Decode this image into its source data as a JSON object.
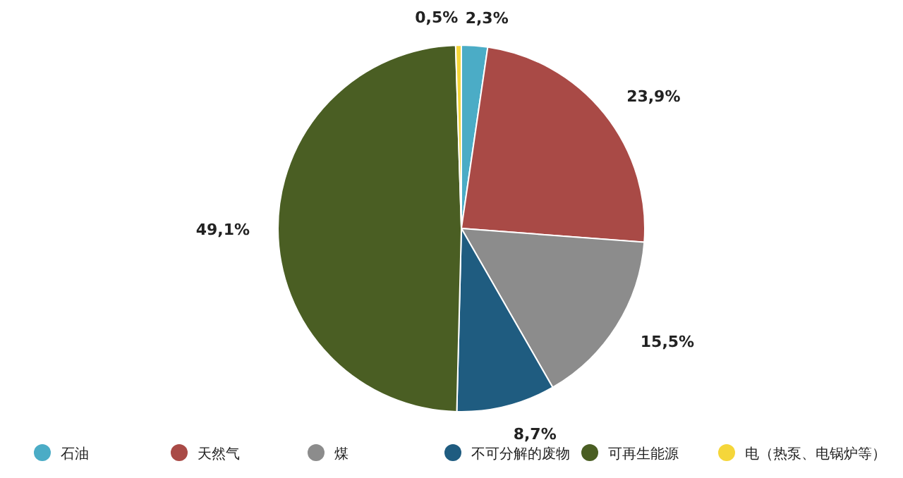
{
  "chart_data": {
    "type": "pie",
    "categories": [
      "石油",
      "天然气",
      "煤",
      "不可分解的废物",
      "可再生能源",
      "电（热泵、电锅炉等）"
    ],
    "values": [
      2.3,
      23.9,
      15.5,
      8.7,
      49.1,
      0.5
    ],
    "colors": [
      "#4bacc6",
      "#a94a46",
      "#8c8c8c",
      "#1f5c80",
      "#4a5e23",
      "#f5d63a"
    ],
    "value_labels": [
      "2,3%",
      "23,9%",
      "15,5%",
      "8,7%",
      "49,1%",
      "0,5%"
    ],
    "legend": "bottom"
  }
}
